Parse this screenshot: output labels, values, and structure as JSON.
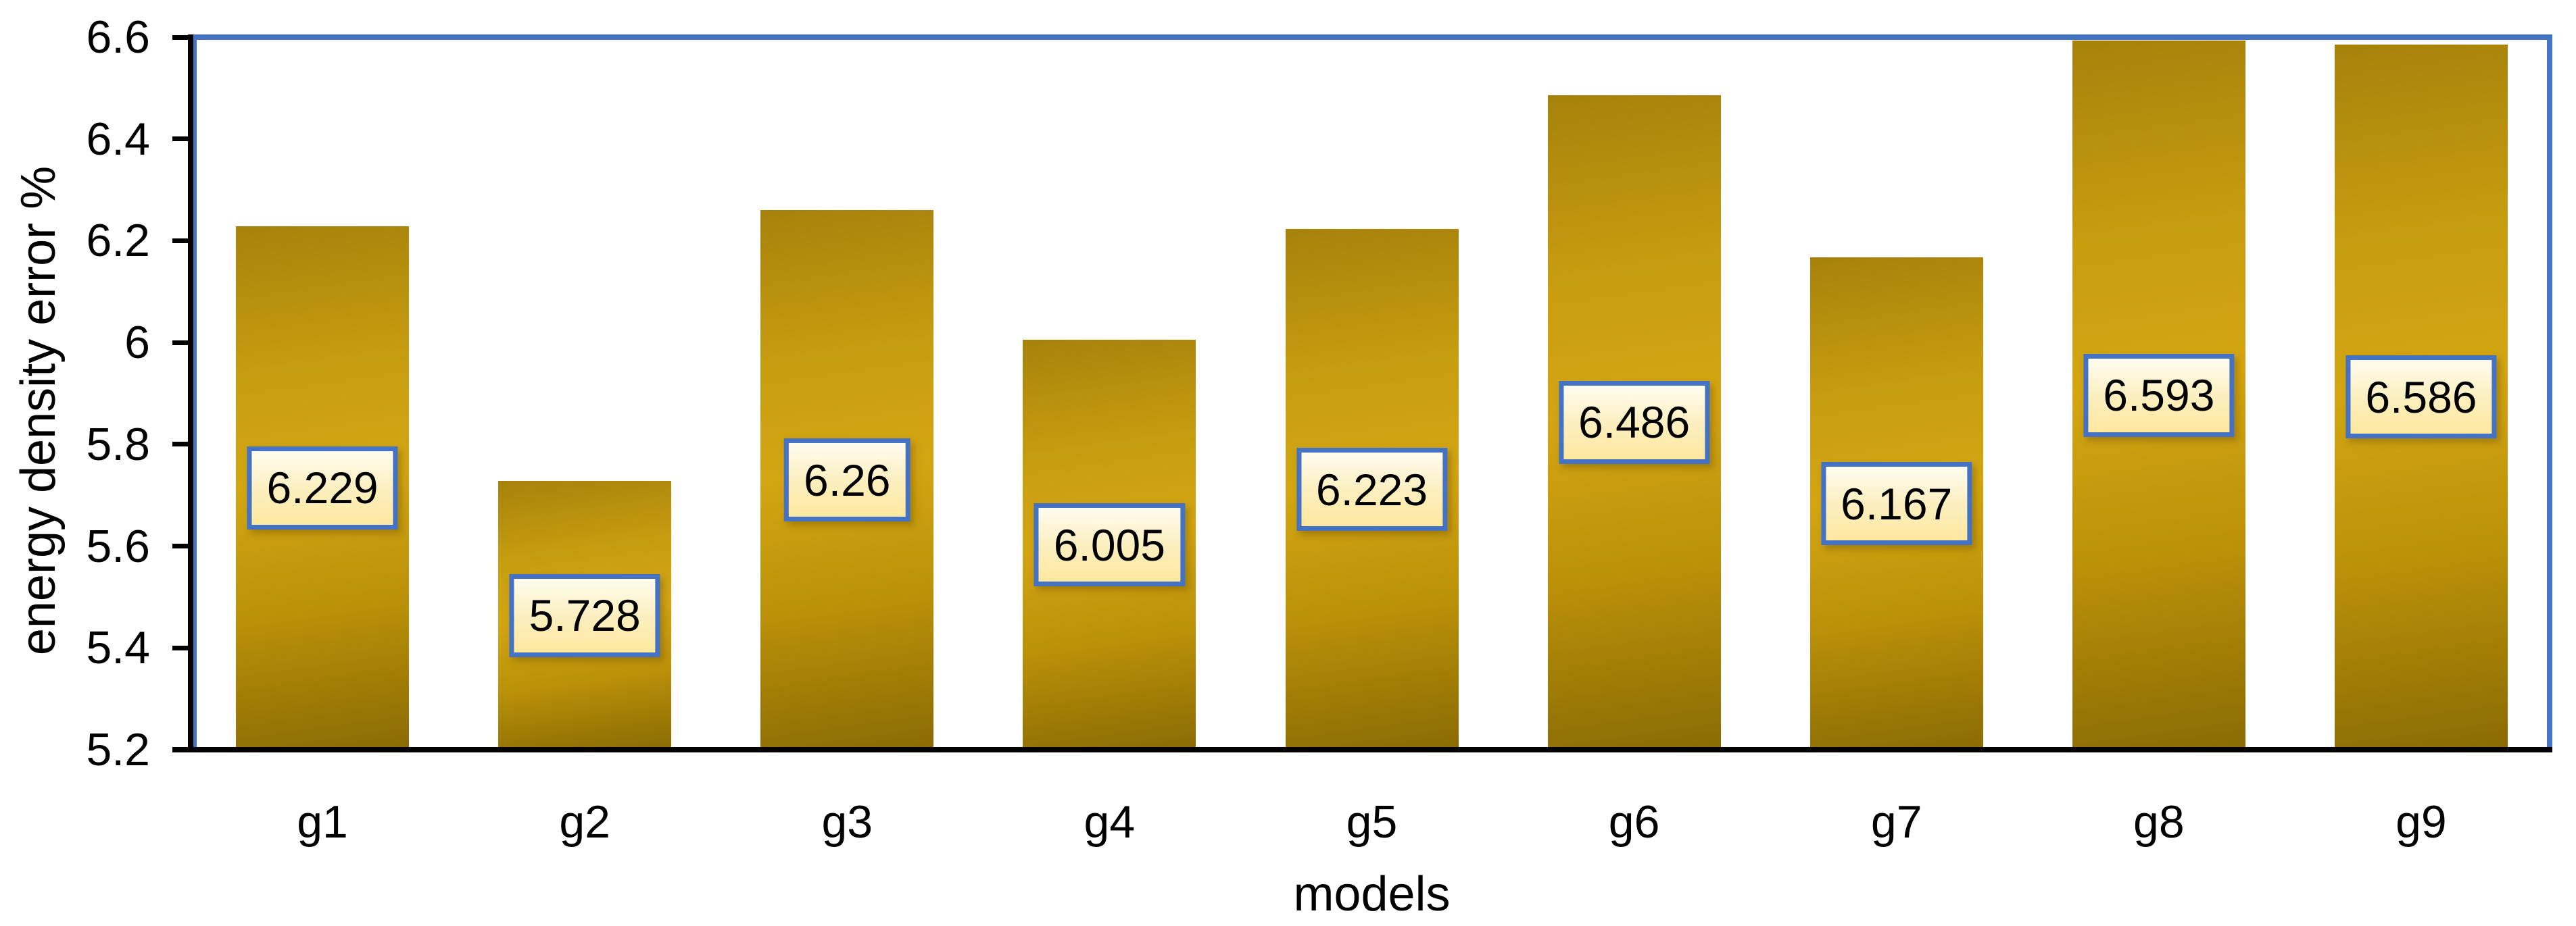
{
  "chart_data": {
    "type": "bar",
    "categories": [
      "g1",
      "g2",
      "g3",
      "g4",
      "g5",
      "g6",
      "g7",
      "g8",
      "g9"
    ],
    "values": [
      6.229,
      5.728,
      6.26,
      6.005,
      6.223,
      6.486,
      6.167,
      6.593,
      6.586
    ],
    "value_labels": [
      "6.229",
      "5.728",
      "6.26",
      "6.005",
      "6.223",
      "6.486",
      "6.167",
      "6.593",
      "6.586"
    ],
    "title": "",
    "xlabel": "models",
    "ylabel": "energy density error %",
    "ylim": [
      5.2,
      6.6
    ],
    "yticks": [
      6.6,
      6.4,
      6.2,
      6,
      5.8,
      5.6,
      5.4,
      5.2
    ],
    "ytick_labels": [
      "6.6",
      "6.4",
      "6.2",
      "6",
      "5.8",
      "5.6",
      "5.4",
      "5.2"
    ],
    "grid": false,
    "legend": false,
    "colors": {
      "accent_blue": "#4472C4",
      "axis_black": "#000000",
      "bar_gold_dark_top": "#a7820b",
      "bar_gold_bright_mid": "#d3a513",
      "bar_gold_dark_bottom": "#8a6b04",
      "label_fill_top": "#fefcf0",
      "label_fill_bottom": "#ffe79e",
      "label_text": "#000000",
      "background": "#ffffff"
    }
  }
}
